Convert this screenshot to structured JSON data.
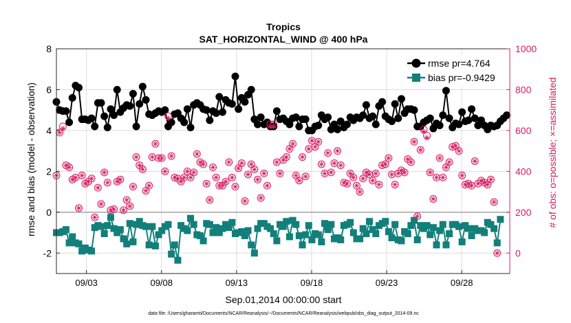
{
  "chart_data": {
    "type": "line",
    "title": "Tropics",
    "subtitle": "SAT_HORIZONTAL_WIND @ 400 hPa",
    "xlabel": "Sep.01,2014 00:00:00 start",
    "ylabel_left": "rmse and bias (model - observation)",
    "ylabel_right": "# of obs: o=possible; ×=assimilated",
    "footnote": "data file: /Users/gharamti/Documents/NCAR/Reanalysis/~/Documents/NCAR/Reanalysis/webpub/obs_diag_output_2014-09.nc",
    "xlim": [
      1.0,
      31.2
    ],
    "ylim_left": [
      -3,
      8
    ],
    "ylim_right": [
      -100,
      1000
    ],
    "x_ticks": [
      3,
      8,
      13,
      18,
      23,
      28
    ],
    "x_tick_labels": [
      "09/03",
      "09/08",
      "09/13",
      "09/18",
      "09/23",
      "09/28"
    ],
    "y_left_ticks": [
      -2,
      0,
      2,
      4,
      6,
      8
    ],
    "y_left_tick_labels": [
      "-2",
      "0",
      "2",
      "4",
      "6",
      "8"
    ],
    "y_right_ticks": [
      0,
      200,
      400,
      600,
      800,
      1000
    ],
    "y_right_tick_labels": [
      "0",
      "200",
      "400",
      "600",
      "800",
      "1000"
    ],
    "zero_line": 0,
    "series": [
      {
        "name": "rmse pr=4.764",
        "axis": "left",
        "marker": "circle",
        "color": "#000000",
        "values": [
          5.4,
          5.0,
          4.95,
          4.95,
          4.4,
          5.6,
          6.2,
          6.1,
          4.55,
          4.55,
          4.5,
          4.6,
          4.2,
          5.35,
          5.35,
          4.7,
          4.15,
          5.05,
          4.75,
          6.0,
          4.9,
          5.1,
          5.25,
          5.2,
          5.8,
          4.2,
          5.3,
          6.15,
          5.5,
          4.8,
          4.75,
          4.85,
          4.95,
          4.9,
          5.0,
          4.2,
          4.4,
          4.8,
          4.85,
          4.6,
          4.4,
          5.05,
          4.15,
          5.25,
          5.35,
          5.25,
          5.05,
          5.0,
          4.5,
          4.95,
          4.85,
          5.65,
          4.9,
          5.5,
          5.35,
          5.3,
          6.65,
          5.05,
          5.6,
          5.4,
          5.75,
          6.0,
          4.55,
          4.3,
          4.65,
          4.3,
          4.4,
          4.2,
          4.2,
          4.95,
          4.55,
          4.6,
          4.45,
          4.3,
          4.6,
          4.65,
          4.2,
          4.55,
          4.55,
          4.0,
          4.0,
          4.2,
          4.25,
          4.75,
          4.55,
          4.65,
          4.05,
          4.3,
          4.05,
          4.45,
          4.15,
          4.3,
          4.65,
          4.5,
          4.65,
          4.6,
          4.75,
          5.25,
          4.6,
          4.7,
          4.3,
          5.2,
          5.4,
          4.7,
          4.55,
          4.45,
          5.3,
          4.6,
          5.55,
          4.85,
          5.05,
          5.05,
          5.0,
          4.2,
          4.2,
          4.4,
          4.5,
          4.6,
          4.1,
          4.35,
          4.25,
          4.75,
          5.95,
          4.6,
          4.15,
          4.35,
          4.3,
          4.9,
          4.45,
          4.5,
          5.05,
          4.6,
          4.25,
          4.5,
          4.25,
          4.05,
          4.25,
          4.2,
          4.25,
          4.45,
          4.6,
          4.75
        ]
      },
      {
        "name": "bias pr=-0.9429",
        "axis": "left",
        "marker": "square",
        "color": "#127f7b",
        "values": [
          -1.0,
          -1.0,
          -0.95,
          -0.85,
          -1.5,
          -1.2,
          -1.5,
          -1.55,
          -1.9,
          -1.75,
          -1.85,
          -1.9,
          -0.75,
          -0.65,
          -0.7,
          -1.05,
          -0.65,
          -0.25,
          -0.8,
          -1.0,
          -0.85,
          -1.3,
          -1.55,
          -0.55,
          -1.45,
          -0.6,
          -0.45,
          -0.65,
          -0.7,
          -1.6,
          -0.7,
          -1.65,
          -1.1,
          -0.9,
          -0.7,
          -0.6,
          -2.05,
          -1.6,
          -2.35,
          -0.65,
          -0.8,
          -0.9,
          -0.3,
          -0.6,
          -1.1,
          -1.15,
          -1.4,
          -0.55,
          -0.6,
          -1.0,
          -0.75,
          -1.0,
          -0.8,
          -0.6,
          -0.75,
          -0.5,
          -1.05,
          -1.0,
          -0.95,
          -1.15,
          -0.9,
          -1.6,
          -2.0,
          -0.8,
          -0.55,
          -0.55,
          -0.7,
          -0.8,
          -1.05,
          -1.4,
          -0.6,
          -0.7,
          -0.45,
          -1.2,
          -0.4,
          -0.6,
          -1.15,
          -1.6,
          -1.1,
          -0.65,
          -1.35,
          -1.05,
          -1.1,
          -1.45,
          -0.55,
          -0.85,
          -0.6,
          -1.3,
          -1.25,
          -1.35,
          -0.65,
          -0.6,
          -0.5,
          -1.0,
          -1.3,
          -1.3,
          -0.8,
          -1.05,
          -0.45,
          -0.85,
          -1.05,
          -0.65,
          -0.55,
          -0.45,
          -0.95,
          -1.25,
          -0.6,
          -1.35,
          -1.4,
          -0.95,
          -1.05,
          -0.65,
          -0.4,
          -1.35,
          -0.65,
          -0.8,
          -0.65,
          -1.1,
          -0.75,
          -1.6,
          -0.9,
          -0.6,
          -1.6,
          -1.05,
          -0.6,
          -0.6,
          -0.7,
          -1.45,
          -0.65,
          -0.8,
          -1.15,
          -0.8,
          -0.9,
          -0.9,
          -1.0,
          -0.5,
          -0.6,
          -0.8,
          -1.5,
          -0.35
        ]
      },
      {
        "name": "possible",
        "axis": "right",
        "marker": "circle-open",
        "color": "#d81b60",
        "values": [
          380,
          590,
          620,
          430,
          420,
          360,
          370,
          220,
          380,
          340,
          350,
          365,
          175,
          320,
          240,
          395,
          345,
          210,
          215,
          350,
          360,
          210,
          260,
          230,
          325,
          470,
          430,
          410,
          305,
          330,
          470,
          535,
          465,
          465,
          400,
          670,
          475,
          370,
          365,
          350,
          370,
          400,
          370,
          395,
          485,
          445,
          435,
          340,
          260,
          420,
          370,
          330,
          330,
          350,
          445,
          370,
          325,
          415,
          440,
          255,
          385,
          435,
          410,
          360,
          270,
          390,
          330,
          630,
          630,
          445,
          390,
          455,
          470,
          510,
          535,
          380,
          355,
          470,
          375,
          510,
          550,
          520,
          545,
          435,
          390,
          490,
          395,
          440,
          500,
          430,
          345,
          340,
          390,
          370,
          330,
          300,
          365,
          395,
          385,
          355,
          390,
          335,
          430,
          435,
          465,
          385,
          335,
          390,
          405,
          395,
          460,
          445,
          545,
          180,
          505,
          605,
          575,
          395,
          265,
          370,
          465,
          370,
          420,
          445,
          520,
          525,
          500,
          380,
          335,
          340,
          330,
          450,
          340,
          355,
          345,
          335,
          360,
          250,
          0
        ]
      },
      {
        "name": "assimilated",
        "axis": "right",
        "marker": "x",
        "color": "#d81b60",
        "values": [
          380,
          590,
          610,
          430,
          420,
          360,
          370,
          220,
          380,
          340,
          350,
          365,
          175,
          320,
          240,
          395,
          345,
          210,
          215,
          350,
          360,
          210,
          260,
          230,
          325,
          470,
          430,
          410,
          305,
          330,
          470,
          535,
          465,
          465,
          400,
          660,
          475,
          370,
          365,
          350,
          370,
          400,
          370,
          395,
          485,
          445,
          435,
          340,
          260,
          420,
          370,
          330,
          330,
          350,
          445,
          370,
          325,
          415,
          440,
          255,
          385,
          435,
          410,
          360,
          270,
          390,
          330,
          620,
          620,
          445,
          390,
          455,
          470,
          510,
          535,
          380,
          355,
          470,
          375,
          510,
          550,
          520,
          545,
          435,
          390,
          490,
          395,
          440,
          500,
          430,
          345,
          340,
          390,
          370,
          330,
          300,
          365,
          395,
          385,
          355,
          390,
          335,
          430,
          435,
          465,
          385,
          335,
          390,
          405,
          395,
          460,
          445,
          545,
          180,
          505,
          595,
          565,
          395,
          265,
          370,
          465,
          370,
          420,
          445,
          520,
          525,
          500,
          380,
          335,
          340,
          330,
          450,
          340,
          355,
          345,
          335,
          360,
          250,
          0
        ]
      }
    ],
    "legend_position": "top-right"
  },
  "colors": {
    "rmse": "#000000",
    "bias": "#127f7b",
    "obs": "#d81b60",
    "zero_line": "#aaaaaa",
    "axis": "#262626"
  }
}
